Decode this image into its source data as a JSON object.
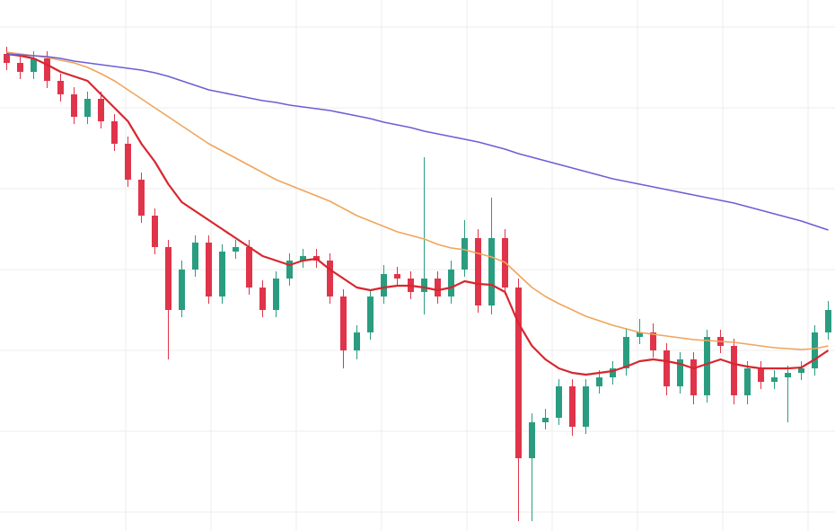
{
  "chart_data": {
    "type": "candlestick",
    "ylim": [
      9,
      600
    ],
    "grid": true,
    "up_color": "#2a9d80",
    "down_color": "#e0344a",
    "open": [
      540,
      530,
      520,
      535,
      510,
      495,
      470,
      490,
      465,
      440,
      400,
      360,
      325,
      255,
      300,
      330,
      270,
      320,
      325,
      280,
      255,
      290,
      310,
      315,
      310,
      270,
      210,
      230,
      270,
      295,
      290,
      275,
      290,
      270,
      300,
      335,
      260,
      335,
      280,
      90,
      130,
      135,
      170,
      125,
      170,
      180,
      190,
      225,
      230,
      210,
      170,
      200,
      160,
      225,
      215,
      160,
      190,
      175,
      180,
      185,
      190,
      230
    ],
    "high": [
      548,
      538,
      543,
      543,
      518,
      503,
      498,
      498,
      473,
      448,
      408,
      368,
      333,
      310,
      338,
      338,
      328,
      333,
      333,
      288,
      298,
      318,
      323,
      323,
      318,
      278,
      238,
      278,
      305,
      303,
      298,
      425,
      298,
      310,
      355,
      345,
      380,
      345,
      290,
      140,
      145,
      178,
      178,
      178,
      188,
      198,
      235,
      245,
      240,
      218,
      208,
      208,
      233,
      233,
      223,
      198,
      198,
      188,
      193,
      198,
      238,
      265
    ],
    "low": [
      522,
      512,
      512,
      502,
      487,
      462,
      462,
      457,
      432,
      392,
      352,
      317,
      200,
      247,
      292,
      262,
      262,
      312,
      272,
      247,
      247,
      282,
      302,
      302,
      262,
      190,
      200,
      222,
      262,
      282,
      267,
      250,
      262,
      262,
      292,
      252,
      250,
      272,
      20,
      20,
      122,
      127,
      115,
      117,
      162,
      172,
      182,
      217,
      202,
      160,
      162,
      150,
      152,
      207,
      150,
      150,
      167,
      167,
      130,
      177,
      182,
      222
    ],
    "close": [
      530,
      520,
      535,
      510,
      495,
      470,
      490,
      465,
      440,
      400,
      360,
      325,
      255,
      300,
      330,
      270,
      320,
      325,
      280,
      255,
      290,
      310,
      315,
      310,
      270,
      210,
      230,
      270,
      295,
      290,
      275,
      290,
      270,
      300,
      335,
      260,
      335,
      280,
      90,
      130,
      135,
      170,
      125,
      170,
      180,
      190,
      225,
      230,
      210,
      170,
      200,
      160,
      225,
      215,
      160,
      190,
      175,
      180,
      185,
      190,
      230,
      255
    ],
    "series": [
      {
        "color": "#d8262e",
        "values": [
          540,
          538,
          535,
          528,
          520,
          515,
          510,
          495,
          480,
          465,
          440,
          420,
          395,
          375,
          365,
          355,
          345,
          335,
          325,
          315,
          310,
          305,
          310,
          312,
          300,
          290,
          280,
          277,
          280,
          282,
          282,
          280,
          277,
          280,
          287,
          284,
          283,
          275,
          240,
          215,
          200,
          190,
          185,
          183,
          185,
          187,
          192,
          198,
          200,
          198,
          195,
          190,
          195,
          200,
          195,
          192,
          190,
          190,
          190,
          191,
          200,
          210
        ]
      },
      {
        "color": "#f0a55a",
        "values": [
          542,
          540,
          538,
          536,
          533,
          530,
          525,
          518,
          510,
          500,
          490,
          480,
          470,
          460,
          450,
          440,
          432,
          424,
          416,
          408,
          400,
          394,
          388,
          382,
          376,
          368,
          360,
          354,
          348,
          342,
          338,
          334,
          328,
          324,
          322,
          318,
          314,
          308,
          294,
          280,
          270,
          262,
          255,
          248,
          243,
          238,
          234,
          230,
          228,
          226,
          224,
          222,
          221,
          220,
          219,
          217,
          215,
          213,
          212,
          211,
          212,
          215
        ]
      },
      {
        "color": "#6b5fd6",
        "values": [
          540,
          539,
          538,
          537,
          535,
          532,
          530,
          528,
          526,
          524,
          522,
          519,
          515,
          510,
          505,
          500,
          497,
          494,
          491,
          488,
          486,
          483,
          481,
          479,
          477,
          474,
          471,
          468,
          464,
          461,
          458,
          454,
          451,
          448,
          445,
          442,
          438,
          434,
          429,
          425,
          421,
          417,
          413,
          409,
          405,
          401,
          398,
          395,
          392,
          389,
          386,
          383,
          380,
          377,
          374,
          370,
          366,
          362,
          358,
          354,
          349,
          344
        ]
      }
    ]
  }
}
